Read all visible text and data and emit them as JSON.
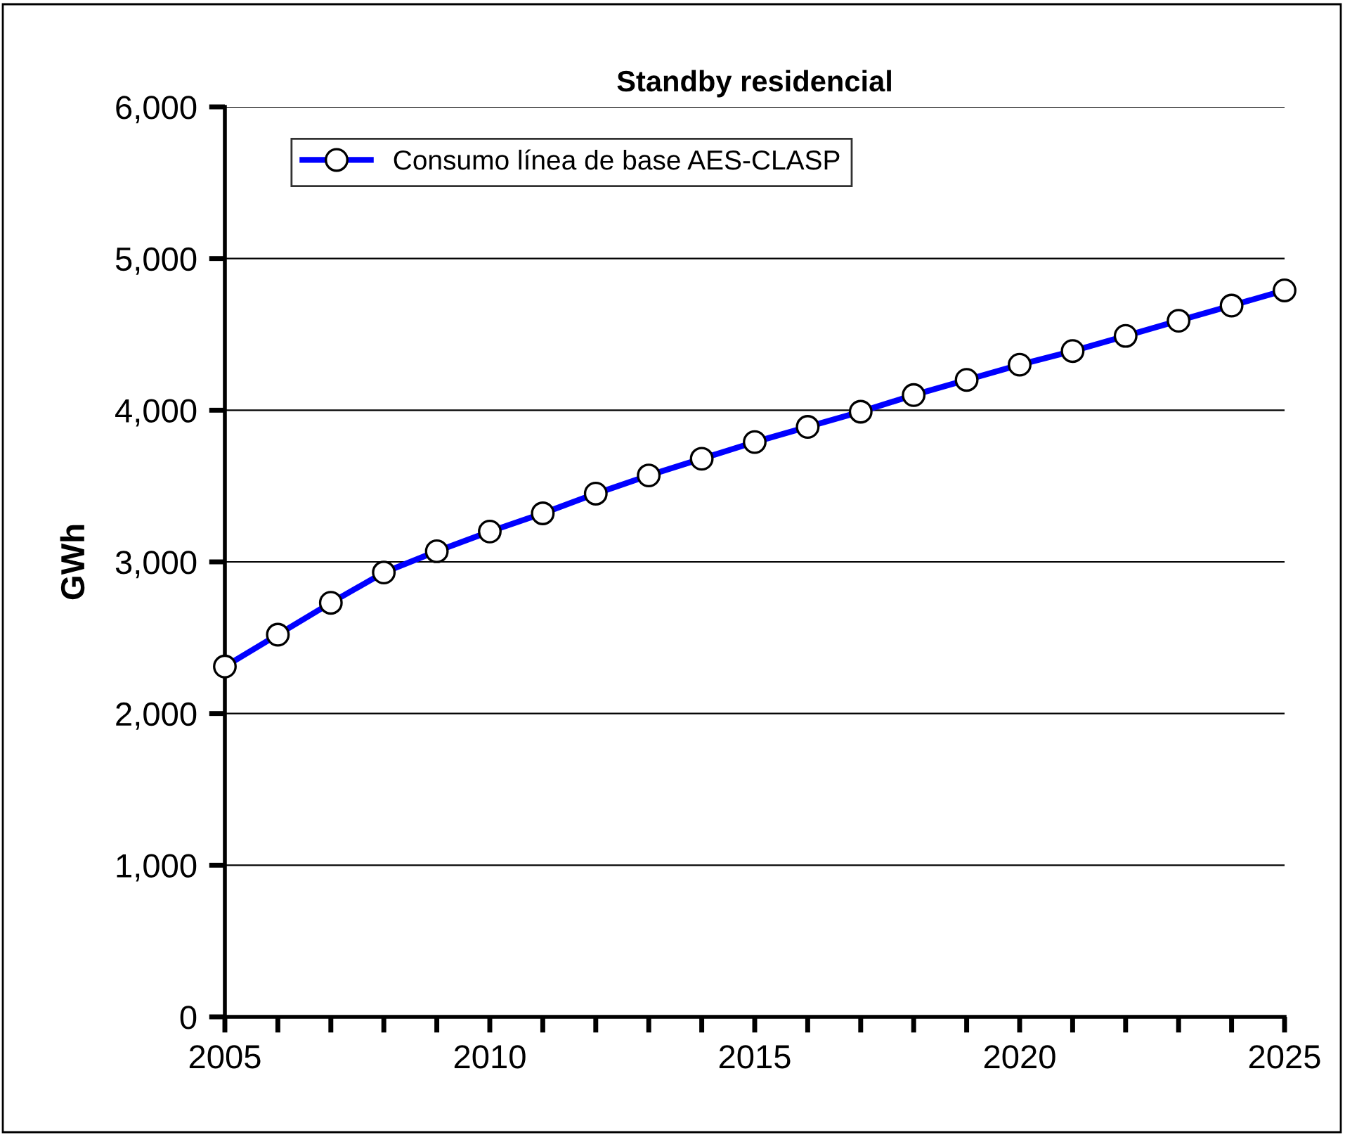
{
  "chart_data": {
    "type": "line",
    "title": "Standby residencial",
    "ylabel": "GWh",
    "x": [
      2005,
      2006,
      2007,
      2008,
      2009,
      2010,
      2011,
      2012,
      2013,
      2014,
      2015,
      2016,
      2017,
      2018,
      2019,
      2020,
      2021,
      2022,
      2023,
      2024,
      2025
    ],
    "series": [
      {
        "name": "Consumo línea de base AES-CLASP",
        "color": "#0000ff",
        "values": [
          2310,
          2520,
          2730,
          2930,
          3070,
          3200,
          3320,
          3450,
          3570,
          3680,
          3790,
          3890,
          3990,
          4100,
          4200,
          4300,
          4390,
          4490,
          4590,
          4690,
          4790
        ]
      }
    ],
    "xlim": [
      2005,
      2025
    ],
    "xticks": [
      2005,
      {
        "value": 2006,
        "label": null
      },
      {
        "value": 2007,
        "label": null
      },
      {
        "value": 2008,
        "label": null
      },
      {
        "value": 2009,
        "label": null
      },
      2010,
      {
        "value": 2011,
        "label": null
      },
      {
        "value": 2012,
        "label": null
      },
      {
        "value": 2013,
        "label": null
      },
      {
        "value": 2014,
        "label": null
      },
      2015,
      {
        "value": 2016,
        "label": null
      },
      {
        "value": 2017,
        "label": null
      },
      {
        "value": 2018,
        "label": null
      },
      {
        "value": 2019,
        "label": null
      },
      2020,
      {
        "value": 2021,
        "label": null
      },
      {
        "value": 2022,
        "label": null
      },
      {
        "value": 2023,
        "label": null
      },
      {
        "value": 2024,
        "label": null
      },
      2025
    ],
    "ylim": [
      0,
      6000
    ],
    "yticks": [
      {
        "value": 0,
        "label": "0"
      },
      {
        "value": 1000,
        "label": "1,000"
      },
      {
        "value": 2000,
        "label": "2,000"
      },
      {
        "value": 3000,
        "label": "3,000"
      },
      {
        "value": 4000,
        "label": "4,000"
      },
      {
        "value": 5000,
        "label": "5,000"
      },
      {
        "value": 6000,
        "label": "6,000"
      }
    ],
    "grid": "y",
    "legend": "top left",
    "marker": "circle",
    "line_style": "solid"
  }
}
